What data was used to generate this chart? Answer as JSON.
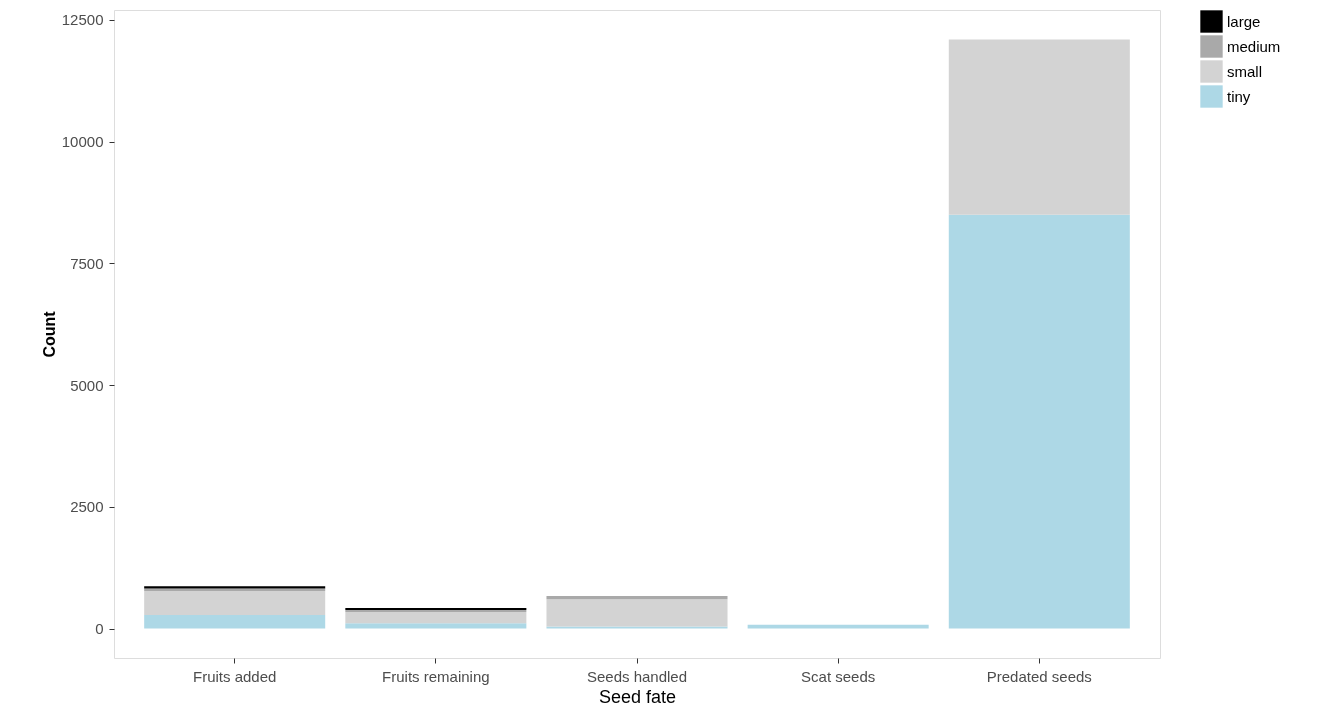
{
  "chart_data": {
    "type": "bar",
    "stacked": true,
    "xlabel": "Seed fate",
    "ylabel": "Count",
    "categories": [
      "Fruits added",
      "Fruits remaining",
      "Seeds handled",
      "Scat seeds",
      "Predated seeds"
    ],
    "series": [
      {
        "name": "tiny",
        "color": "#add8e6",
        "values": [
          280,
          110,
          40,
          80,
          8500
        ]
      },
      {
        "name": "small",
        "color": "#d3d3d3",
        "values": [
          490,
          230,
          560,
          0,
          3600
        ]
      },
      {
        "name": "medium",
        "color": "#a9a9a9",
        "values": [
          50,
          40,
          70,
          0,
          0
        ]
      },
      {
        "name": "large",
        "color": "#000000",
        "values": [
          50,
          40,
          0,
          0,
          0
        ]
      }
    ],
    "ylim": [
      -605,
      12705
    ],
    "yticks": [
      0,
      2500,
      5000,
      7500,
      10000,
      12500
    ],
    "grid": false,
    "legend": "right"
  }
}
